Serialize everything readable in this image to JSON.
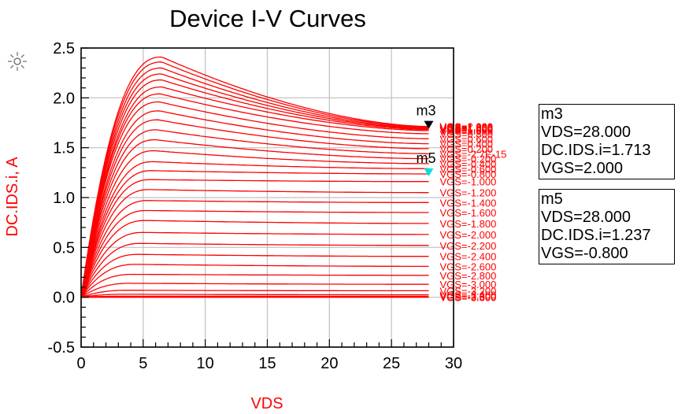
{
  "chart_data": {
    "type": "line",
    "title": "Device I-V Curves",
    "xlabel": "VDS",
    "ylabel": "DC.IDS.i, A",
    "xlim": [
      0,
      30
    ],
    "ylim": [
      -0.5,
      2.5
    ],
    "x_ticks": [
      "0",
      "5",
      "10",
      "15",
      "20",
      "25",
      "30"
    ],
    "y_ticks": [
      "-0.5",
      "0.0",
      "0.5",
      "1.0",
      "1.5",
      "2.0",
      "2.5"
    ],
    "grid": true,
    "curve_color": "#ff0000",
    "x_end": 28,
    "series": [
      {
        "label": "VGS=2.000",
        "peak_vds": 6.5,
        "peak": 2.41,
        "end": 1.713
      },
      {
        "label": "VGS=1.800",
        "peak_vds": 6.5,
        "peak": 2.36,
        "end": 1.705
      },
      {
        "label": "VGS=1.600",
        "peak_vds": 6.5,
        "peak": 2.3,
        "end": 1.697
      },
      {
        "label": "VGS=1.400",
        "peak_vds": 6.5,
        "peak": 2.24,
        "end": 1.69
      },
      {
        "label": "VGS=1.200",
        "peak_vds": 6.5,
        "peak": 2.18,
        "end": 1.682
      },
      {
        "label": "VGS=1.000",
        "peak_vds": 6.5,
        "peak": 2.11,
        "end": 1.672
      },
      {
        "label": "VGS=0.800",
        "peak_vds": 6.4,
        "peak": 2.04,
        "end": 1.64
      },
      {
        "label": "VGS=0.600",
        "peak_vds": 6.3,
        "peak": 1.96,
        "end": 1.59
      },
      {
        "label": "VGS=0.400",
        "peak_vds": 6.3,
        "peak": 1.87,
        "end": 1.54
      },
      {
        "label": "VGS=0.200",
        "peak_vds": 6.2,
        "peak": 1.78,
        "end": 1.49
      },
      {
        "label": "VGS=-2.7E-15",
        "peak_vds": 6.1,
        "peak": 1.68,
        "end": 1.44
      },
      {
        "label": "VGS=-0.200",
        "peak_vds": 6.0,
        "peak": 1.58,
        "end": 1.39
      },
      {
        "label": "VGS=-0.400",
        "peak_vds": 5.9,
        "peak": 1.47,
        "end": 1.34
      },
      {
        "label": "VGS=-0.600",
        "peak_vds": 5.8,
        "peak": 1.36,
        "end": 1.29
      },
      {
        "label": "VGS=-0.800",
        "peak_vds": 5.7,
        "peak": 1.27,
        "end": 1.237
      },
      {
        "label": "VGS=-1.000",
        "peak_vds": 5.6,
        "peak": 1.18,
        "end": 1.16
      },
      {
        "label": "VGS=-1.200",
        "peak_vds": 5.5,
        "peak": 1.08,
        "end": 1.05
      },
      {
        "label": "VGS=-1.400",
        "peak_vds": 5.4,
        "peak": 0.97,
        "end": 0.95
      },
      {
        "label": "VGS=-1.600",
        "peak_vds": 5.3,
        "peak": 0.87,
        "end": 0.85
      },
      {
        "label": "VGS=-1.800",
        "peak_vds": 5.2,
        "peak": 0.77,
        "end": 0.74
      },
      {
        "label": "VGS=-2.000",
        "peak_vds": 5.0,
        "peak": 0.65,
        "end": 0.63
      },
      {
        "label": "VGS=-2.200",
        "peak_vds": 4.8,
        "peak": 0.54,
        "end": 0.52
      },
      {
        "label": "VGS=-2.400",
        "peak_vds": 4.6,
        "peak": 0.43,
        "end": 0.41
      },
      {
        "label": "VGS=-2.600",
        "peak_vds": 4.4,
        "peak": 0.33,
        "end": 0.31
      },
      {
        "label": "VGS=-2.800",
        "peak_vds": 4.2,
        "peak": 0.23,
        "end": 0.22
      },
      {
        "label": "VGS=-3.000",
        "peak_vds": 4.0,
        "peak": 0.14,
        "end": 0.13
      },
      {
        "label": "VGS=-3.200",
        "peak_vds": 3.8,
        "peak": 0.07,
        "end": 0.065
      },
      {
        "label": "VGS=-3.400",
        "peak_vds": 3.6,
        "peak": 0.03,
        "end": 0.025
      },
      {
        "label": "VGS=-3.600",
        "peak_vds": 3.4,
        "peak": 0.01,
        "end": 0.01
      },
      {
        "label": "VGS=-3.800",
        "peak_vds": 3.2,
        "peak": 0.0,
        "end": 0.0
      }
    ],
    "markers": [
      {
        "name": "m3",
        "vds": "28.000",
        "ids": "1.713",
        "vgs": "2.000",
        "x": 28,
        "y": 1.713,
        "color": "#000000"
      },
      {
        "name": "m5",
        "vds": "28.000",
        "ids": "1.237",
        "vgs": "-0.800",
        "x": 28,
        "y": 1.237,
        "color": "#00e0e0"
      }
    ]
  },
  "marker_boxes": {
    "m3": {
      "name": "m3",
      "vds": "VDS=28.000",
      "ids": "DC.IDS.i=1.713",
      "vgs": "VGS=2.000"
    },
    "m5": {
      "name": "m5",
      "vds": "VDS=28.000",
      "ids": "DC.IDS.i=1.237",
      "vgs": "VGS=-0.800"
    }
  },
  "logo_icon": "starburst-icon"
}
